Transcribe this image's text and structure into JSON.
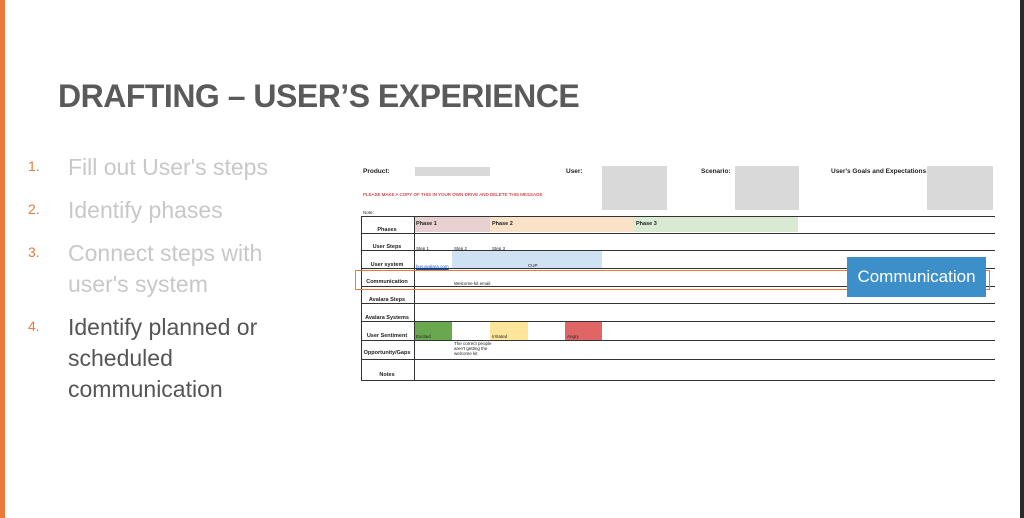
{
  "title": "DRAFTING – USER’S EXPERIENCE",
  "steps": [
    {
      "num": "1.",
      "text": "Fill out User's steps"
    },
    {
      "num": "2.",
      "text": "Identify phases"
    },
    {
      "num": "3.",
      "text": "Connect steps with user's system"
    },
    {
      "num": "4.",
      "text": "Identify planned or scheduled communication"
    }
  ],
  "sheet": {
    "product_label": "Product:",
    "user_label": "User:",
    "scenario_label": "Scenario:",
    "goals_label": "User's Goals and Expectations:",
    "message": "PLEASE MAKE A COPY OF THIS IN YOUR OWN DRIVE AND DELETE THIS MESSAGE",
    "note_label": "Note:",
    "rows": [
      "Phases",
      "User Steps",
      "User system",
      "Communication",
      "Avalara Steps",
      "Avalara Systems",
      "User Sentiment",
      "Opportunity/Gaps",
      "Notes"
    ],
    "phases": [
      "Phase 1",
      "Phase 2",
      "Phase 3"
    ],
    "user_steps": [
      "Step 1",
      "Step 2",
      "Step 3"
    ],
    "system_link": "buy.avalara.com",
    "system_cup": "CUP",
    "communication_cell": "Welcome kit email",
    "sentiments": [
      "Excited",
      "Irritated",
      "Angry"
    ],
    "gap_text": "The correct people aren't getting the welcome kit",
    "colors": {
      "phase1": "#ead1d1",
      "phase2": "#f9e2c8",
      "phase3": "#d9ead3",
      "system": "#cfe2f3",
      "excited": "#6aa84f",
      "irritated": "#ffe599",
      "angry": "#e06666"
    }
  },
  "callout": "Communication"
}
